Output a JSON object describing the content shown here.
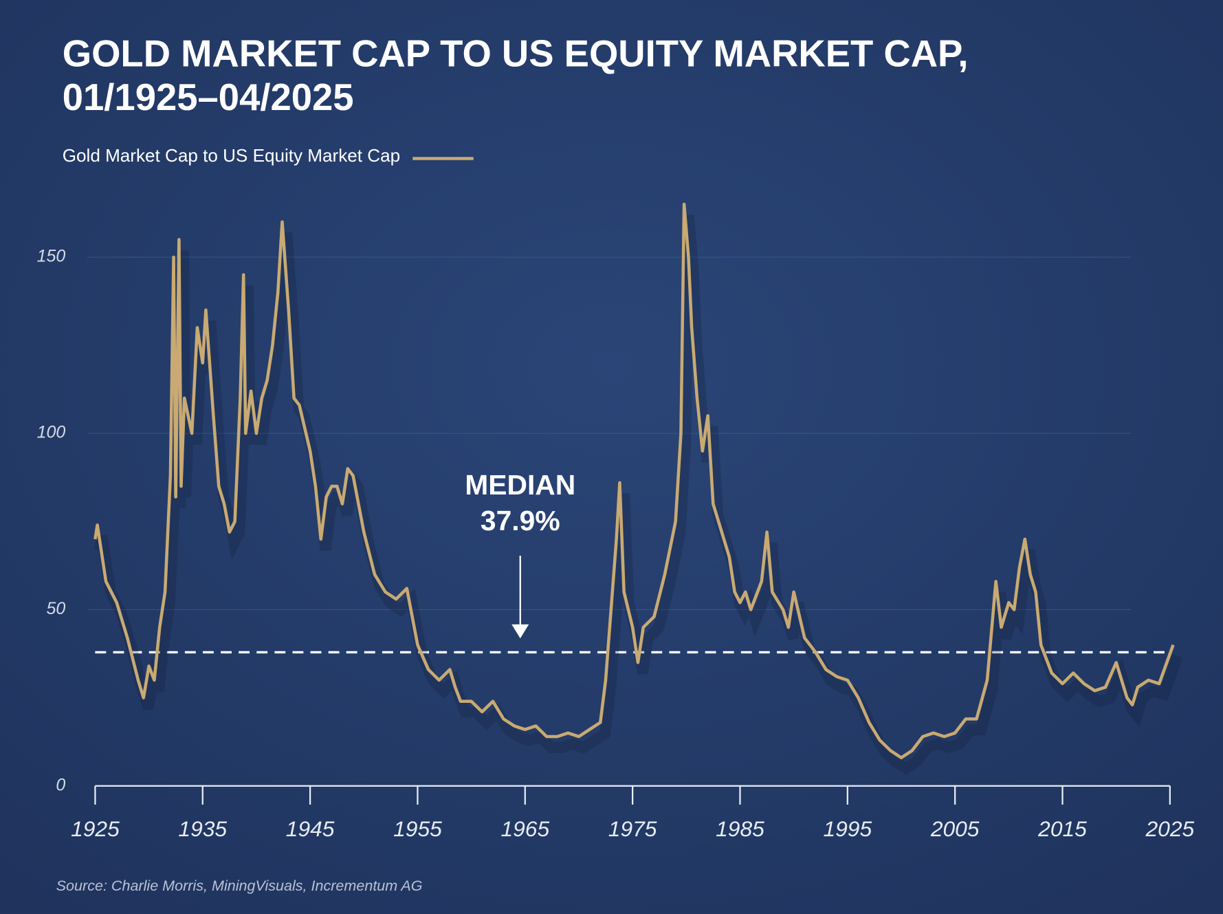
{
  "chart_data": {
    "type": "line",
    "title": [
      "GOLD MARKET CAP TO US EQUITY MARKET CAP,",
      "01/1925–04/2025"
    ],
    "source": "Source: Charlie Morris, MiningVisuals, Incrementum AG",
    "xlim": [
      1925,
      2025
    ],
    "xticks": [
      1925,
      1935,
      1945,
      1955,
      1965,
      1975,
      1985,
      1995,
      2005,
      2015,
      2025
    ],
    "ylim": [
      0,
      170
    ],
    "yticks": [
      0,
      50,
      100,
      150
    ],
    "grid": true,
    "reference_line": {
      "value": 37.9,
      "label": "MEDIAN",
      "value_label": "37.9%"
    },
    "x": [
      1925,
      1925.2,
      1926,
      1927,
      1928,
      1929,
      1929.5,
      1930,
      1930.5,
      1931,
      1931.5,
      1932,
      1932.3,
      1932.5,
      1932.8,
      1933,
      1933.3,
      1934,
      1934.5,
      1935,
      1935.3,
      1936,
      1936.5,
      1937,
      1937.5,
      1938,
      1938.5,
      1938.8,
      1939,
      1939.5,
      1940,
      1940.5,
      1941,
      1941.5,
      1942,
      1942.4,
      1943,
      1943.5,
      1944,
      1945,
      1945.5,
      1946,
      1946.5,
      1947,
      1947.5,
      1948,
      1948.5,
      1949,
      1949.5,
      1950,
      1951,
      1952,
      1953,
      1954,
      1954.5,
      1955,
      1956,
      1957,
      1958,
      1958.5,
      1959,
      1960,
      1961,
      1962,
      1963,
      1964,
      1965,
      1966,
      1967,
      1968,
      1969,
      1970,
      1971,
      1972,
      1972.5,
      1973,
      1973.5,
      1973.8,
      1974.2,
      1975,
      1975.5,
      1976,
      1977,
      1978,
      1979,
      1979.5,
      1979.8,
      1980.2,
      1980.5,
      1981,
      1981.5,
      1982,
      1982.5,
      1983,
      1984,
      1984.5,
      1985,
      1985.5,
      1986,
      1987,
      1987.5,
      1988,
      1989,
      1989.5,
      1990,
      1991,
      1992,
      1993,
      1994,
      1995,
      1996,
      1997,
      1998,
      1999,
      2000,
      2001,
      2002,
      2003,
      2004,
      2005,
      2006,
      2007,
      2008,
      2008.8,
      2009.3,
      2010,
      2010.5,
      2011,
      2011.5,
      2012,
      2012.5,
      2013,
      2014,
      2015,
      2016,
      2017,
      2018,
      2019,
      2020,
      2021,
      2021.5,
      2022,
      2023,
      2024,
      2025.3
    ],
    "series": [
      {
        "name": "Gold Market Cap to US Equity Market Cap",
        "color": "#c9aa72",
        "values": [
          70,
          74,
          58,
          52,
          42,
          30,
          25,
          34,
          30,
          45,
          55,
          88,
          150,
          82,
          155,
          85,
          110,
          100,
          130,
          120,
          135,
          105,
          85,
          80,
          72,
          75,
          110,
          145,
          100,
          112,
          100,
          110,
          115,
          125,
          140,
          160,
          135,
          110,
          108,
          95,
          85,
          70,
          82,
          85,
          85,
          80,
          90,
          88,
          80,
          72,
          60,
          55,
          53,
          56,
          48,
          40,
          33,
          30,
          33,
          28,
          24,
          24,
          21,
          24,
          19,
          17,
          16,
          17,
          14,
          14,
          15,
          14,
          16,
          18,
          30,
          50,
          70,
          86,
          55,
          45,
          35,
          45,
          48,
          60,
          75,
          100,
          165,
          150,
          130,
          110,
          95,
          105,
          80,
          75,
          65,
          55,
          52,
          55,
          50,
          58,
          72,
          55,
          50,
          45,
          55,
          42,
          38,
          33,
          31,
          30,
          25,
          18,
          13,
          10,
          8,
          10,
          14,
          15,
          14,
          15,
          19,
          19,
          30,
          58,
          45,
          52,
          50,
          62,
          70,
          60,
          55,
          40,
          32,
          29,
          32,
          29,
          27,
          28,
          35,
          25,
          23,
          28,
          30,
          29,
          40
        ]
      }
    ]
  }
}
